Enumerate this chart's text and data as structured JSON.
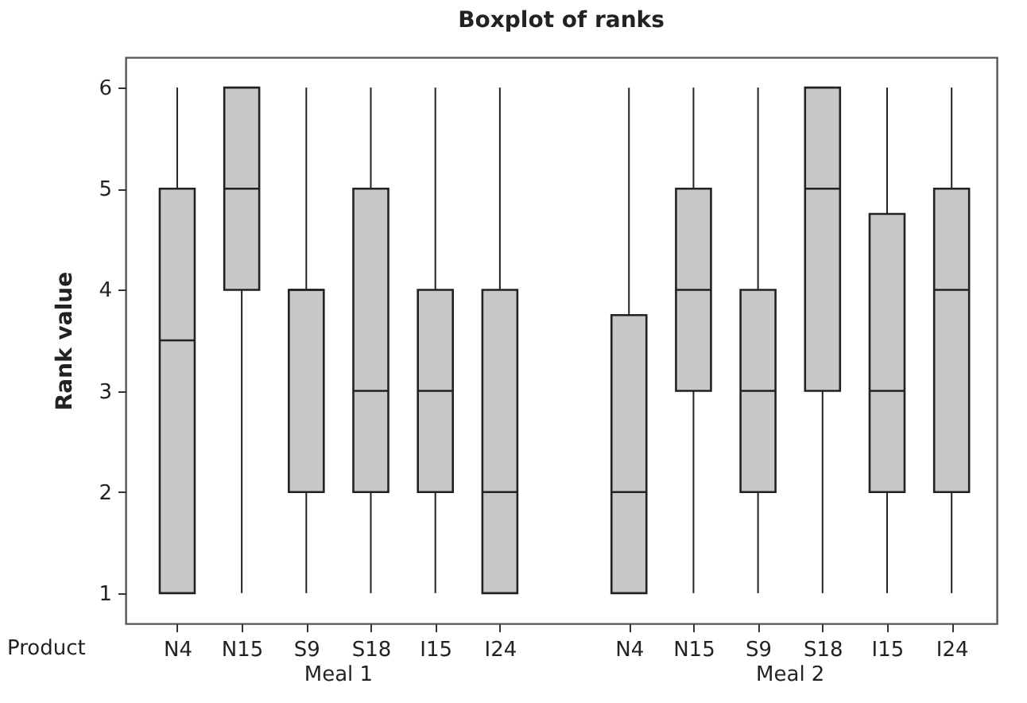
{
  "chart_data": {
    "type": "box",
    "title": "Boxplot of ranks",
    "xlabel": "Product",
    "ylabel": "Rank value",
    "categories": [
      "N4",
      "N15",
      "S9",
      "S18",
      "I15",
      "I24",
      null,
      "N4",
      "N15",
      "S9",
      "S18",
      "I15",
      "I24"
    ],
    "annotations": [
      "Meal 1",
      "Meal 2"
    ],
    "ylim": [
      0.7,
      6.3
    ],
    "yticks": [
      1,
      2,
      3,
      4,
      5,
      6
    ],
    "series": [
      {
        "color": "#c8c8c8",
        "boxes": [
          {
            "low": 1,
            "q1": 1,
            "median": 3.5,
            "q3": 5,
            "high": 6
          },
          {
            "low": 1,
            "q1": 4,
            "median": 5,
            "q3": 6,
            "high": 6
          },
          {
            "low": 1,
            "q1": 2,
            "median": 4,
            "q3": 4,
            "high": 6
          },
          {
            "low": 1,
            "q1": 2,
            "median": 3,
            "q3": 5,
            "high": 6
          },
          {
            "low": 1,
            "q1": 2,
            "median": 3,
            "q3": 4,
            "high": 6
          },
          {
            "low": 1,
            "q1": 1,
            "median": 2,
            "q3": 4,
            "high": 6
          },
          null,
          {
            "low": 1,
            "q1": 1,
            "median": 2,
            "q3": 3.75,
            "high": 6
          },
          {
            "low": 1,
            "q1": 3,
            "median": 4,
            "q3": 5,
            "high": 6
          },
          {
            "low": 1,
            "q1": 2,
            "median": 3,
            "q3": 4,
            "high": 6
          },
          {
            "low": 1,
            "q1": 3,
            "median": 5,
            "q3": 6,
            "high": 6
          },
          {
            "low": 1,
            "q1": 2,
            "median": 3,
            "q3": 4.75,
            "high": 6
          },
          {
            "low": 1,
            "q1": 2,
            "median": 4,
            "q3": 5,
            "high": 6
          }
        ]
      }
    ]
  }
}
